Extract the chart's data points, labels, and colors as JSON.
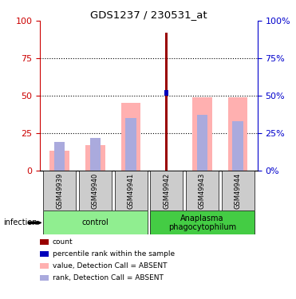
{
  "title": "GDS1237 / 230531_at",
  "samples": [
    "GSM49939",
    "GSM49940",
    "GSM49941",
    "GSM49942",
    "GSM49943",
    "GSM49944"
  ],
  "groups": [
    {
      "label": "control",
      "color": "#90ee90",
      "indices": [
        0,
        1,
        2
      ]
    },
    {
      "label": "Anaplasma\nphagocytophilum",
      "color": "#44cc44",
      "indices": [
        3,
        4,
        5
      ]
    }
  ],
  "count_values": [
    null,
    null,
    null,
    92,
    null,
    null
  ],
  "count_color": "#990000",
  "rank_values": [
    null,
    null,
    null,
    52,
    null,
    null
  ],
  "rank_color": "#0000bb",
  "pink_bar_values": [
    13,
    17,
    45,
    null,
    49,
    49
  ],
  "pink_bar_color": "#ffb0b0",
  "blue_bar_values": [
    19,
    22,
    35,
    null,
    37,
    33
  ],
  "blue_bar_color": "#aaaadd",
  "ylim": [
    0,
    100
  ],
  "yticks": [
    0,
    25,
    50,
    75,
    100
  ],
  "left_axis_color": "#cc0000",
  "right_axis_color": "#0000cc",
  "legend_items": [
    {
      "label": "count",
      "color": "#990000"
    },
    {
      "label": "percentile rank within the sample",
      "color": "#0000bb"
    },
    {
      "label": "value, Detection Call = ABSENT",
      "color": "#ffb0b0"
    },
    {
      "label": "rank, Detection Call = ABSENT",
      "color": "#aaaadd"
    }
  ],
  "infection_label": "infection",
  "figsize": [
    3.71,
    3.75
  ],
  "dpi": 100
}
